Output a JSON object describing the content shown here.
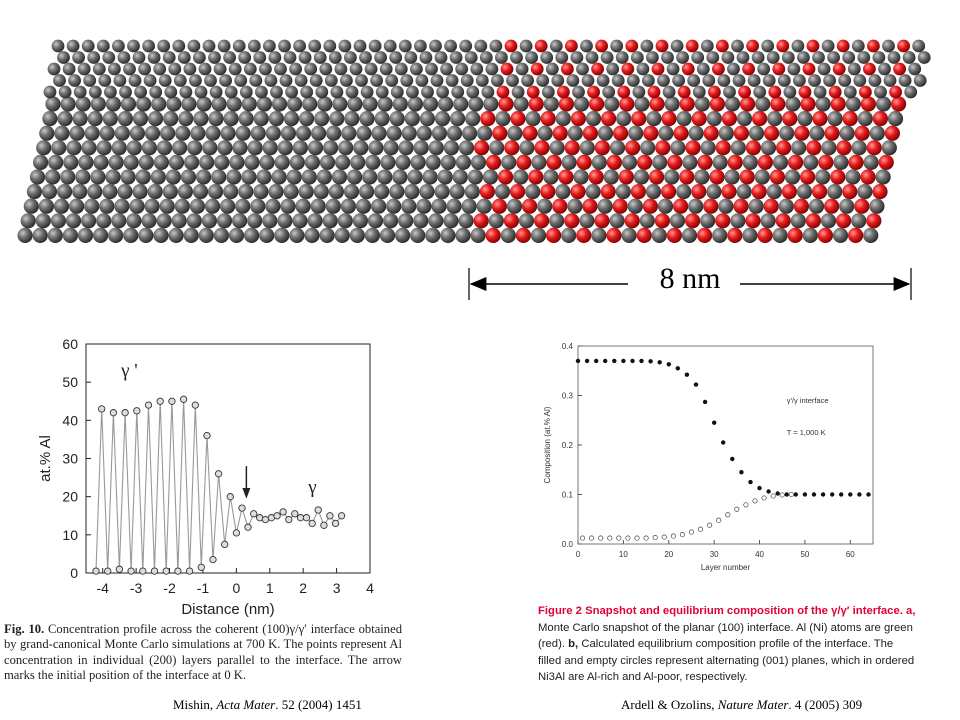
{
  "scale_bar": {
    "label": "8 nm"
  },
  "figure_left": {
    "caption_number": "Fig. 10.",
    "caption_text": "Concentration profile across the coherent (100)γ/γ′ interface obtained by grand-canonical Monte Carlo simulations at 700 K. The points represent Al concentration in individual (200) layers parallel to the interface. The arrow marks the initial position of the interface at 0 K.",
    "citation_author": "Mishin, ",
    "citation_journal": "Acta Mater",
    "citation_rest": ". 52 (2004) 1451"
  },
  "figure_right": {
    "caption_title": "Figure 2 Snapshot and equilibrium composition of the γ/γ′ interface.",
    "caption_a_label": "a,",
    "caption_a": "Monte Carlo snapshot of the planar (100) interface. Al (Ni) atoms are green (red).",
    "caption_b_label": "b,",
    "caption_b": "Calculated equilibrium composition profile of the interface. The filled and empty circles represent alternating (001) planes, which in ordered Ni3Al are Al-rich and Al-poor, respectively.",
    "citation_author": "Ardell & Ozolins, ",
    "citation_journal": "Nature Mater",
    "citation_rest": ". 4 (2005) 309"
  },
  "chart_data": [
    {
      "type": "line",
      "xlabel": "Distance (nm)",
      "ylabel": "at.% Al",
      "xlim": [
        -4.5,
        4
      ],
      "ylim": [
        0,
        60
      ],
      "xticks": [
        "-4",
        "-3",
        "-2",
        "-1",
        "0",
        "1",
        "2",
        "3",
        "4"
      ],
      "yticks": [
        "0",
        "10",
        "20",
        "30",
        "40",
        "50",
        "60"
      ],
      "annotations": [
        "γ '",
        "γ"
      ],
      "arrow_at_x": 0.3,
      "series": [
        {
          "x": [
            -4.2,
            -4.03,
            -3.85,
            -3.68,
            -3.5,
            -3.33,
            -3.15,
            -2.98,
            -2.8,
            -2.63,
            -2.45,
            -2.28,
            -2.1,
            -1.93,
            -1.75,
            -1.58,
            -1.4,
            -1.23,
            -1.05,
            -0.88,
            -0.7,
            -0.53,
            -0.35,
            -0.18,
            0.0,
            0.17,
            0.35,
            0.52,
            0.7,
            0.87,
            1.05,
            1.22,
            1.4,
            1.57,
            1.75,
            1.92,
            2.1,
            2.27,
            2.45,
            2.62,
            2.8,
            2.97,
            3.15
          ],
          "values": [
            0.5,
            43,
            0.5,
            42,
            1,
            42,
            0.5,
            42.5,
            0.5,
            44,
            0.5,
            45,
            0.5,
            45,
            0.5,
            45.5,
            0.5,
            44,
            1.5,
            36,
            3.5,
            26,
            7.5,
            20,
            10.5,
            17,
            12,
            15.5,
            14.5,
            14,
            14.5,
            15,
            16,
            14,
            15.5,
            14.5,
            14.5,
            13,
            16.5,
            12.5,
            15,
            13,
            15
          ]
        }
      ]
    },
    {
      "type": "scatter",
      "xlabel": "Layer number",
      "ylabel": "Composition (at.% Al)",
      "xlim": [
        0,
        65
      ],
      "ylim": [
        0,
        0.4
      ],
      "xticks": [
        "0",
        "10",
        "20",
        "30",
        "40",
        "50",
        "60"
      ],
      "yticks": [
        "0.0",
        "0.1",
        "0.2",
        "0.3",
        "0.4"
      ],
      "legend_title": "γ′/γ interface",
      "legend_temp": "T = 1,000 K",
      "series": [
        {
          "name": "filled",
          "x": [
            0,
            2,
            4,
            6,
            8,
            10,
            12,
            14,
            16,
            18,
            20,
            22,
            24,
            26,
            28,
            30,
            32,
            34,
            36,
            38,
            40,
            42,
            44,
            46,
            48,
            50,
            52,
            54,
            56,
            58,
            60,
            62,
            64
          ],
          "values": [
            0.37,
            0.37,
            0.37,
            0.37,
            0.37,
            0.37,
            0.37,
            0.37,
            0.369,
            0.367,
            0.363,
            0.355,
            0.342,
            0.322,
            0.287,
            0.245,
            0.205,
            0.172,
            0.145,
            0.125,
            0.113,
            0.106,
            0.102,
            0.1,
            0.1,
            0.1,
            0.1,
            0.1,
            0.1,
            0.1,
            0.1,
            0.1,
            0.1
          ]
        },
        {
          "name": "empty",
          "x": [
            1,
            3,
            5,
            7,
            9,
            11,
            13,
            15,
            17,
            19,
            21,
            23,
            25,
            27,
            29,
            31,
            33,
            35,
            37,
            39,
            41,
            43,
            45,
            47
          ],
          "values": [
            0.012,
            0.012,
            0.012,
            0.012,
            0.012,
            0.012,
            0.012,
            0.012,
            0.013,
            0.014,
            0.016,
            0.019,
            0.024,
            0.03,
            0.038,
            0.048,
            0.059,
            0.07,
            0.079,
            0.087,
            0.093,
            0.097,
            0.099,
            0.1
          ]
        }
      ]
    }
  ],
  "colors": {
    "ni_atom": "#4a4a4a",
    "al_atom": "#e01818",
    "line_gray": "#999999",
    "caption_red": "#e0003c"
  }
}
